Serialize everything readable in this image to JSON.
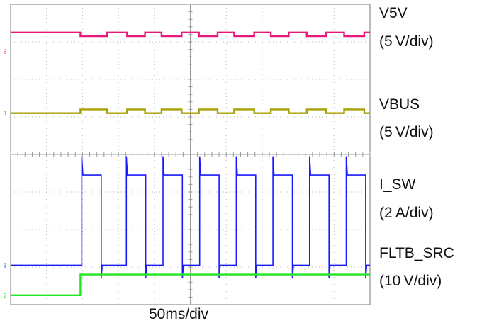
{
  "chart_data": {
    "type": "line",
    "xlabel": "50ms/div",
    "x_range_ms": [
      0,
      500
    ],
    "x_divisions": 10,
    "y_divisions": 8,
    "grid": true,
    "series": [
      {
        "name": "V5V",
        "scale": "(5 V/div)",
        "color": "#e8197d",
        "marker_text": "3",
        "baseline_div": 7.25,
        "dip_div": 7.15,
        "dips_ms": [
          [
            97,
            134
          ],
          [
            162,
            187
          ],
          [
            210,
            238
          ],
          [
            262,
            288
          ],
          [
            311,
            339
          ],
          [
            362,
            387
          ],
          [
            412,
            439
          ],
          [
            464,
            492
          ]
        ]
      },
      {
        "name": "VBUS",
        "scale": "(5 V/div)",
        "color": "#a6a000",
        "marker_text": "1",
        "baseline_div": 5.1,
        "bump_div": 5.2,
        "bumps_ms": [
          [
            97,
            134
          ],
          [
            162,
            187
          ],
          [
            210,
            238
          ],
          [
            262,
            288
          ],
          [
            311,
            339
          ],
          [
            362,
            387
          ],
          [
            412,
            439
          ],
          [
            464,
            492
          ]
        ]
      },
      {
        "name": "I_SW",
        "scale": "(2 A/div)",
        "color": "#1a1aff",
        "marker_text": "3",
        "baseline_div": 1.05,
        "pulse_high_div": 3.45,
        "pulse_start_ms": [
          99,
          161,
          212,
          263,
          314,
          365,
          416,
          467
        ],
        "pulse_width_ms": 27
      },
      {
        "name": "FLTB_SRC",
        "scale": "(10 V/div)",
        "color": "#22e622",
        "marker_text": "2",
        "low_div": 0.25,
        "high_div": 0.8,
        "step_ms": 97
      }
    ]
  },
  "labels": {
    "v5v_name": "V5V",
    "v5v_scale": "(5 V/div)",
    "vbus_name": "VBUS",
    "vbus_scale": "(5 V/div)",
    "isw_name": "I_SW",
    "isw_scale": "(2 A/div)",
    "fltb_name": "FLTB_SRC",
    "fltb_scale": "(10 V/div)",
    "xaxis": "50ms/div"
  }
}
